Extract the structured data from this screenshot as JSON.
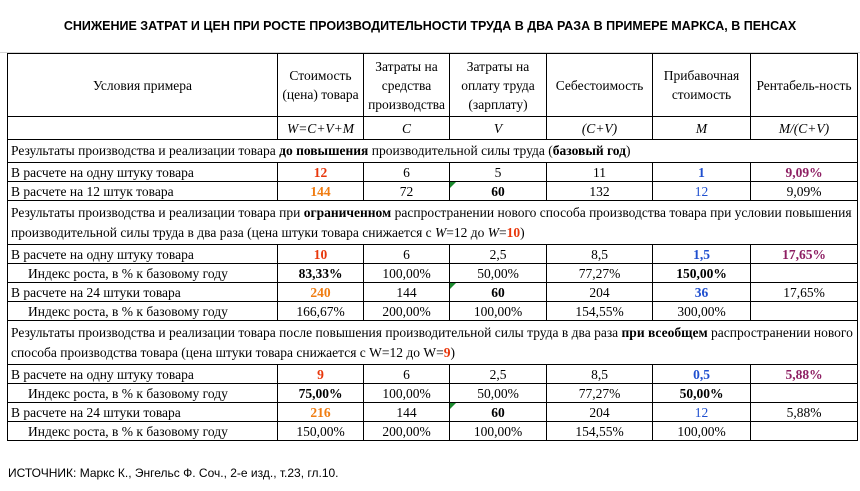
{
  "title": "СНИЖЕНИЕ ЗАТРАТ И ЦЕН ПРИ РОСТЕ ПРОИЗВОДИТЕЛЬНОСТИ ТРУДА В ДВА РАЗА В ПРИМЕРЕ МАРКСА, В ПЕНСАХ",
  "headers": {
    "conditions": "Условия примера",
    "cost": "Стоимость (цена) товара",
    "means": "Затраты на средства производства",
    "wages": "Затраты на оплату труда (зарплату)",
    "selfcost": "Себестоимость",
    "surplus": "Прибавочная стоимость",
    "profit": "Рентабель-ность"
  },
  "formulas": {
    "cost": "W=C+V+M",
    "means": "C",
    "wages": "V",
    "selfcost": "(C+V)",
    "surplus": "M",
    "profit": "M/(C+V)"
  },
  "section1": {
    "a": "Результаты производства и реализации товара ",
    "b": "до повышения",
    "c": " производительной силы труда (",
    "d": "базовый год",
    "e": ")"
  },
  "section2": {
    "a": "Результаты производства и реализации товара  при ",
    "b": "ограниченном",
    "c": " распространении нового способа производства товара при условии повышения производительной силы труда в два раза  (цена штуки товара снижается с ",
    "w1": "W",
    "d": "=12 до ",
    "w2": "W",
    "e": "=",
    "ten": "10",
    "f": ")"
  },
  "section3": {
    "a": "Результаты производства и реализации товара после повышения производительной силы труда в два раза ",
    "b": "при всеобщем",
    "c": " распространении нового способа производства товара (цена штуки товара снижается с W=12 до W=",
    "nine": "9",
    "d": ")"
  },
  "rows": {
    "r1": {
      "label": "В расчете на одну штуку товара",
      "cost": "12",
      "means": "6",
      "wages": "5",
      "selfcost": "11",
      "surplus": "1",
      "profit": "9,09%"
    },
    "r2": {
      "label": "В расчете на 12 штук товара",
      "cost": "144",
      "means": "72",
      "wages": "60",
      "selfcost": "132",
      "surplus": "12",
      "profit": "9,09%"
    },
    "r3": {
      "label": "В расчете на одну штуку товара",
      "cost": "10",
      "means": "6",
      "wages": "2,5",
      "selfcost": "8,5",
      "surplus": "1,5",
      "profit": "17,65%"
    },
    "r4": {
      "label": "Индекс роста, в % к базовому году",
      "cost": "83,33%",
      "means": "100,00%",
      "wages": "50,00%",
      "selfcost": "77,27%",
      "surplus": "150,00%",
      "profit": ""
    },
    "r5": {
      "label": "В расчете на 24 штуки товара",
      "cost": "240",
      "means": "144",
      "wages": "60",
      "selfcost": "204",
      "surplus": "36",
      "profit": "17,65%"
    },
    "r6": {
      "label": "Индекс роста, в % к базовому году",
      "cost": "166,67%",
      "means": "200,00%",
      "wages": "100,00%",
      "selfcost": "154,55%",
      "surplus": "300,00%",
      "profit": ""
    },
    "r7": {
      "label": "В расчете на одну штуку товара",
      "cost": "9",
      "means": "6",
      "wages": "2,5",
      "selfcost": "8,5",
      "surplus": "0,5",
      "profit": "5,88%"
    },
    "r8": {
      "label": "Индекс роста, в % к базовому году",
      "cost": "75,00%",
      "means": "100,00%",
      "wages": "50,00%",
      "selfcost": "77,27%",
      "surplus": "50,00%",
      "profit": ""
    },
    "r9": {
      "label": "В расчете на 24 штуки товара",
      "cost": "216",
      "means": "144",
      "wages": "60",
      "selfcost": "204",
      "surplus": "12",
      "profit": "5,88%"
    },
    "r10": {
      "label": "Индекс роста, в % к базовому году",
      "cost": "150,00%",
      "means": "200,00%",
      "wages": "100,00%",
      "selfcost": "154,55%",
      "surplus": "100,00%",
      "profit": ""
    }
  },
  "source": "ИСТОЧНИК: Маркс К., Энгельс Ф. Соч., 2-е изд., т.23, гл.10.",
  "colors": {
    "red": "#e8370b",
    "orange": "#f07d12",
    "blue": "#1f4fcf",
    "purple": "#8e1f63",
    "comment_marker": "#1c8a2e"
  }
}
